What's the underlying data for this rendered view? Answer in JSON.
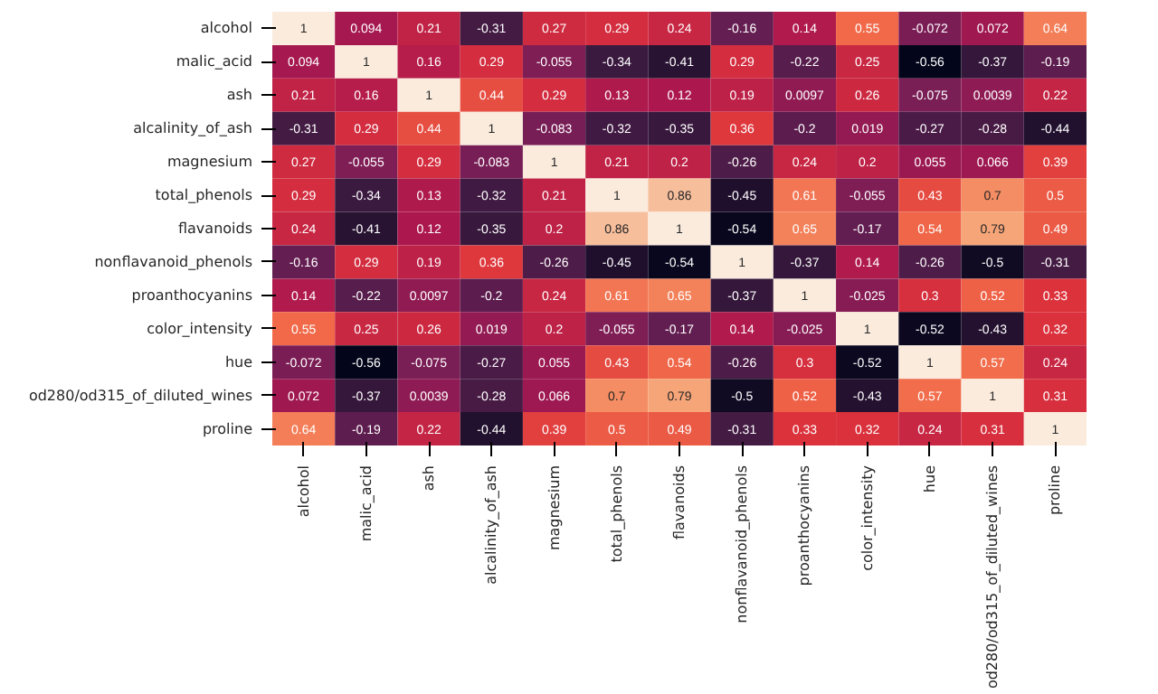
{
  "chart_data": {
    "type": "heatmap",
    "categories": [
      "alcohol",
      "malic_acid",
      "ash",
      "alcalinity_of_ash",
      "magnesium",
      "total_phenols",
      "flavanoids",
      "nonflavanoid_phenols",
      "proanthocyanins",
      "color_intensity",
      "hue",
      "od280/od315_of_diluted_wines",
      "proline"
    ],
    "y_categories": [
      "alcohol",
      "malic_acid",
      "ash",
      "alcalinity_of_ash",
      "magnesium",
      "total_phenols",
      "flavanoids",
      "nonflavanoid_phenols",
      "proanthocyanins",
      "color_intensity",
      "hue",
      "od280/od315_of_diluted_wines",
      "proline"
    ],
    "cells": [
      [
        1,
        0.094,
        0.21,
        -0.31,
        0.27,
        0.29,
        0.24,
        -0.16,
        0.14,
        0.55,
        -0.072,
        0.072,
        0.64
      ],
      [
        0.094,
        1,
        0.16,
        0.29,
        -0.055,
        -0.34,
        -0.41,
        0.29,
        -0.22,
        0.25,
        -0.56,
        -0.37,
        -0.19
      ],
      [
        0.21,
        0.16,
        1,
        0.44,
        0.29,
        0.13,
        0.12,
        0.19,
        0.0097,
        0.26,
        -0.075,
        0.0039,
        0.22
      ],
      [
        -0.31,
        0.29,
        0.44,
        1,
        -0.083,
        -0.32,
        -0.35,
        0.36,
        -0.2,
        0.019,
        -0.27,
        -0.28,
        -0.44
      ],
      [
        0.27,
        -0.055,
        0.29,
        -0.083,
        1,
        0.21,
        0.2,
        -0.26,
        0.24,
        0.2,
        0.055,
        0.066,
        0.39
      ],
      [
        0.29,
        -0.34,
        0.13,
        -0.32,
        0.21,
        1,
        0.86,
        -0.45,
        0.61,
        -0.055,
        0.43,
        0.7,
        0.5
      ],
      [
        0.24,
        -0.41,
        0.12,
        -0.35,
        0.2,
        0.86,
        1,
        -0.54,
        0.65,
        -0.17,
        0.54,
        0.79,
        0.49
      ],
      [
        -0.16,
        0.29,
        0.19,
        0.36,
        -0.26,
        -0.45,
        -0.54,
        1,
        -0.37,
        0.14,
        -0.26,
        -0.5,
        -0.31
      ],
      [
        0.14,
        -0.22,
        0.0097,
        -0.2,
        0.24,
        0.61,
        0.65,
        -0.37,
        1,
        -0.025,
        0.3,
        0.52,
        0.33
      ],
      [
        0.55,
        0.25,
        0.26,
        0.019,
        0.2,
        -0.055,
        -0.17,
        0.14,
        -0.025,
        1,
        -0.52,
        -0.43,
        0.32
      ],
      [
        -0.072,
        -0.56,
        -0.075,
        -0.27,
        0.055,
        0.43,
        0.54,
        -0.26,
        0.3,
        -0.52,
        1,
        0.57,
        0.24
      ],
      [
        0.072,
        -0.37,
        0.0039,
        -0.28,
        0.066,
        0.7,
        0.79,
        -0.5,
        0.52,
        -0.43,
        0.57,
        1,
        0.31
      ],
      [
        0.64,
        -0.19,
        0.22,
        -0.44,
        0.39,
        0.5,
        0.49,
        -0.31,
        0.33,
        0.32,
        0.24,
        0.31,
        1
      ]
    ],
    "data_labels": true
  }
}
